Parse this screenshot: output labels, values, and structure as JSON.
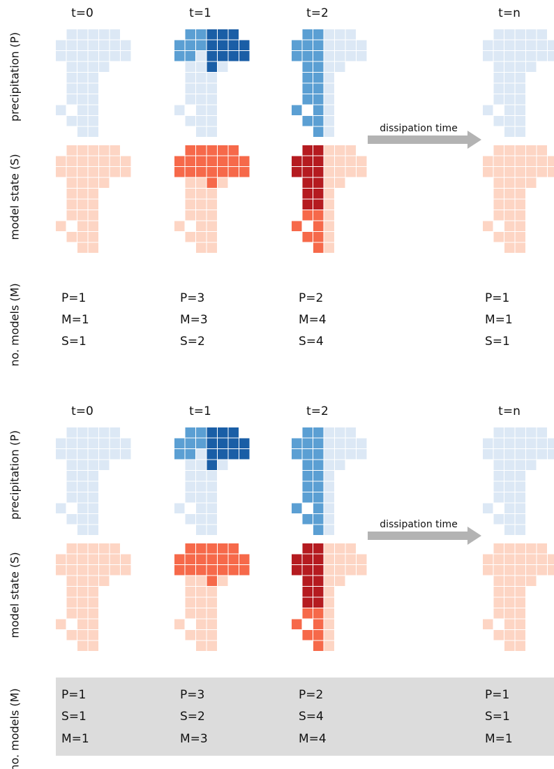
{
  "panels": [
    {
      "time_labels": [
        "t=0",
        "t=1",
        "t=2",
        "t=n"
      ],
      "row_labels": [
        "precipitation (P)",
        "model state (S)",
        "no. models (M)"
      ],
      "arrow_label": "dissipation time",
      "stats": [
        [
          "P=1",
          "M=1",
          "S=1"
        ],
        [
          "P=3",
          "M=3",
          "S=2"
        ],
        [
          "P=2",
          "M=4",
          "S=4"
        ],
        [
          "P=1",
          "M=1",
          "S=1"
        ]
      ]
    },
    {
      "time_labels": [
        "t=0",
        "t=1",
        "t=2",
        "t=n"
      ],
      "row_labels": [
        "precipitation (P)",
        "model state (S)",
        "no. models (M)"
      ],
      "arrow_label": "dissipation time",
      "stats": [
        [
          "P=1",
          "S=1",
          "M=1"
        ],
        [
          "P=3",
          "S=2",
          "M=3"
        ],
        [
          "P=2",
          "S=4",
          "M=4"
        ],
        [
          "P=1",
          "S=1",
          "M=1"
        ]
      ]
    }
  ]
}
